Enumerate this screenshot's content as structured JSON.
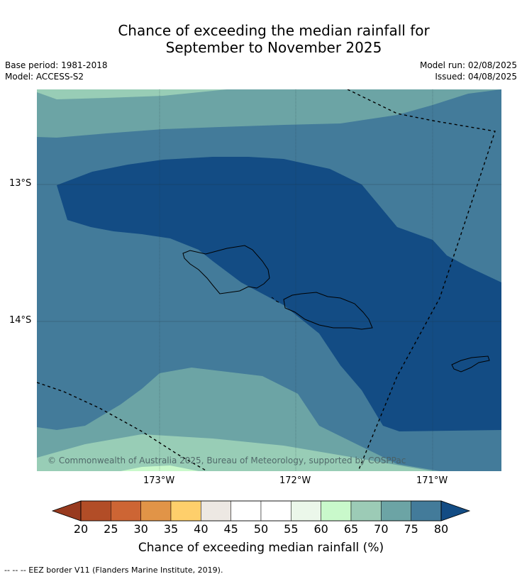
{
  "title": {
    "line1": "Chance of exceeding the median rainfall for",
    "line2": "September to November 2025"
  },
  "meta": {
    "base_period": "Base period: 1981-2018",
    "model": "Model: ACCESS-S2",
    "model_run": "Model run: 02/08/2025",
    "issued": "Issued: 04/08/2025"
  },
  "map": {
    "lat_labels": [
      "13°S",
      "14°S"
    ],
    "lon_labels": [
      "173°W",
      "172°W",
      "171°W"
    ],
    "copyright": "© Commonwealth of Australia 2025, Bureau of Meteorology, supported by COSPPac",
    "colors": {
      "c80": "#134c84",
      "c75": "#437b9a",
      "c70": "#6ca4a5",
      "c65": "#98cdb6",
      "c60": "#c9f9cb"
    }
  },
  "colorbar": {
    "tick_labels": [
      "20",
      "25",
      "30",
      "35",
      "40",
      "45",
      "50",
      "55",
      "60",
      "65",
      "70",
      "75",
      "80"
    ],
    "under_color": "#983a1f",
    "over_color": "#134c84",
    "bin_colors": [
      "#b24d27",
      "#cd6534",
      "#e19447",
      "#fecf6b",
      "#ede8e3",
      "#ffffff",
      "#ffffff",
      "#ebf7ea",
      "#c9f9cb",
      "#9ccbb6",
      "#6ca4a5",
      "#437b9a"
    ],
    "title": "Chance of exceeding median rainfall (%)"
  },
  "footer": {
    "eez_note": "--  --  -- EEZ border V11 (Flanders Marine Institute, 2019)."
  }
}
